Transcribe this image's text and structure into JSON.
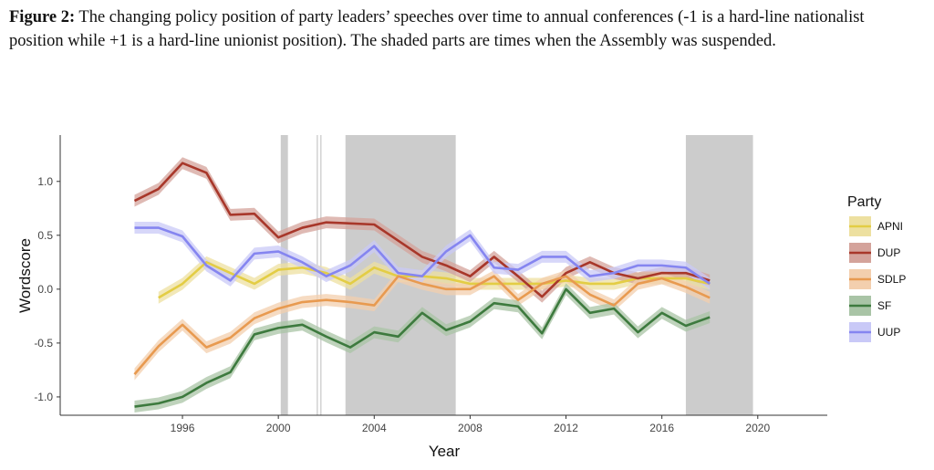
{
  "caption": {
    "label": "Figure 2:",
    "text": "The changing policy position of party leaders’ speeches over time to annual conferences (-1 is a hard-line nationalist position while +1 is a hard-line unionist position). The shaded parts are times when the Assembly was suspended."
  },
  "chart_data": {
    "type": "line",
    "xlabel": "Year",
    "ylabel": "Wordscore",
    "xlim": [
      1990.9,
      2022.9
    ],
    "ylim": [
      -1.17,
      1.43
    ],
    "xticks": [
      1996,
      2000,
      2004,
      2008,
      2012,
      2016,
      2020
    ],
    "yticks": [
      -1.0,
      -0.5,
      0.0,
      0.5,
      1.0
    ],
    "ytick_labels": [
      "-1.0",
      "-0.5",
      "0.0",
      "0.5",
      "1.0"
    ],
    "grid": false,
    "legend": {
      "title": "Party",
      "position": "right"
    },
    "suspended_periods": [
      [
        2000.1,
        2000.4
      ],
      [
        2001.6,
        2001.65
      ],
      [
        2001.75,
        2001.8
      ],
      [
        2002.8,
        2007.4
      ],
      [
        2017.0,
        2019.8
      ]
    ],
    "x": [
      1994,
      1995,
      1996,
      1997,
      1998,
      1999,
      2000,
      2001,
      2002,
      2003,
      2004,
      2005,
      2006,
      2007,
      2008,
      2009,
      2010,
      2011,
      2012,
      2013,
      2014,
      2015,
      2016,
      2017,
      2018
    ],
    "series": [
      {
        "name": "APNI",
        "color": "#e3cd45",
        "band": "#ede0a0",
        "values": [
          null,
          -0.08,
          0.05,
          0.25,
          0.15,
          0.05,
          0.18,
          0.2,
          0.15,
          0.05,
          0.2,
          0.12,
          0.12,
          0.1,
          0.05,
          0.05,
          0.05,
          0.05,
          0.08,
          0.05,
          0.05,
          0.1,
          0.1,
          0.1,
          0.05
        ]
      },
      {
        "name": "DUP",
        "color": "#a8372a",
        "band": "#d4a39b",
        "values": [
          0.82,
          0.93,
          1.17,
          1.08,
          0.69,
          0.7,
          0.48,
          0.57,
          0.62,
          0.61,
          0.6,
          0.45,
          0.3,
          0.22,
          0.12,
          0.3,
          0.12,
          -0.07,
          0.15,
          0.25,
          0.15,
          0.1,
          0.15,
          0.15,
          0.08
        ]
      },
      {
        "name": "SDLP",
        "color": "#e89a50",
        "band": "#f3cfae",
        "values": [
          -0.79,
          -0.53,
          -0.33,
          -0.54,
          -0.45,
          -0.27,
          -0.18,
          -0.12,
          -0.1,
          -0.12,
          -0.15,
          0.12,
          0.05,
          0.0,
          0.0,
          0.12,
          -0.1,
          0.05,
          0.12,
          -0.05,
          -0.15,
          0.05,
          0.1,
          0.02,
          -0.08
        ]
      },
      {
        "name": "SF",
        "color": "#3d7a3e",
        "band": "#a9c4a6",
        "values": [
          -1.09,
          -1.06,
          -1.0,
          -0.87,
          -0.77,
          -0.42,
          -0.36,
          -0.33,
          -0.44,
          -0.54,
          -0.4,
          -0.44,
          -0.22,
          -0.38,
          -0.3,
          -0.13,
          -0.16,
          -0.41,
          0.0,
          -0.22,
          -0.18,
          -0.4,
          -0.22,
          -0.34,
          -0.26
        ]
      },
      {
        "name": "UUP",
        "color": "#8585f0",
        "band": "#c9c9f7",
        "values": [
          0.57,
          0.57,
          0.49,
          0.22,
          0.08,
          0.33,
          0.35,
          0.25,
          0.12,
          0.22,
          0.4,
          0.15,
          0.12,
          0.35,
          0.5,
          0.2,
          0.18,
          0.3,
          0.3,
          0.12,
          0.15,
          0.22,
          0.22,
          0.2,
          0.05
        ]
      }
    ]
  }
}
